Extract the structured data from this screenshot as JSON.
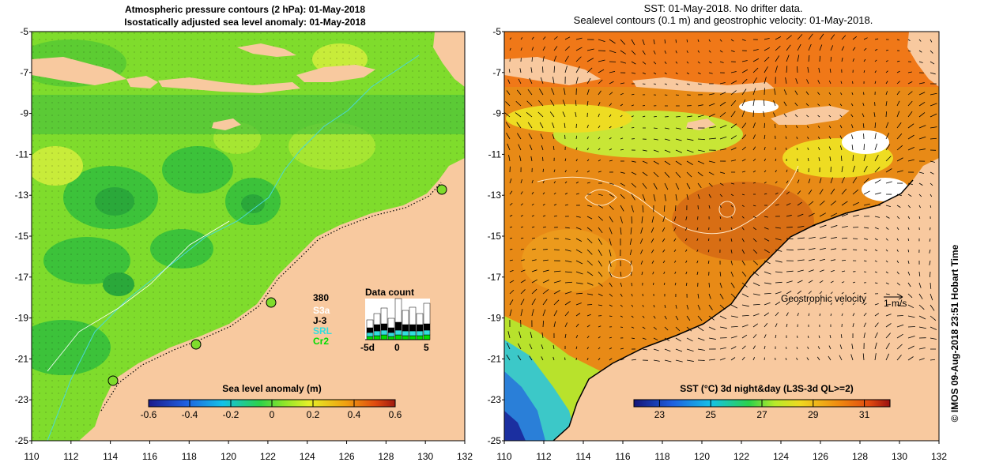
{
  "left_map": {
    "title_line1": "Atmospheric pressure contours (2 hPa): 01-May-2018",
    "title_line2": "Isostatically adjusted sea level anomaly: 01-May-2018",
    "colorbar": {
      "label": "Sea level anomaly (m)",
      "ticks": [
        "-0.6",
        "-0.4",
        "-0.2",
        "0",
        "0.2",
        "0.4",
        "0.6"
      ],
      "range": [
        -0.6,
        0.6
      ]
    },
    "data_count": {
      "title": "Data count",
      "max_label": "380",
      "sources": [
        {
          "name": "S3a",
          "color": "#ffffff"
        },
        {
          "name": "J-3",
          "color": "#000000"
        },
        {
          "name": "SRL",
          "color": "#33dddd"
        },
        {
          "name": "Cr2",
          "color": "#00dd00"
        }
      ],
      "axis_labels": [
        "-5d",
        "0",
        "5"
      ]
    }
  },
  "right_map": {
    "title_line1": "SST: 01-May-2018. No drifter data.",
    "title_line2": "Sealevel contours (0.1 m) and geostrophic velocity: 01-May-2018.",
    "colorbar": {
      "label": "SST (°C) 3d night&day (L3S-3d QL>=2)",
      "ticks": [
        "23",
        "25",
        "27",
        "29",
        "31"
      ],
      "range": [
        22,
        32
      ]
    },
    "velocity_legend": {
      "label": "Geostrophic velocity",
      "scale": "1 m/s"
    }
  },
  "axes": {
    "x_ticks": [
      "110",
      "112",
      "114",
      "116",
      "118",
      "120",
      "122",
      "124",
      "126",
      "128",
      "130",
      "132"
    ],
    "y_ticks": [
      "-5",
      "-7",
      "-9",
      "-11",
      "-13",
      "-15",
      "-17",
      "-19",
      "-21",
      "-23",
      "-25"
    ],
    "lon_range": [
      110,
      132
    ],
    "lat_range": [
      -25,
      -5
    ]
  },
  "credit": "© IMOS 09-Aug-2018 23:51 Hobart Time",
  "colors": {
    "land": "#f8c99f",
    "ocean_green": "#7fdc2c",
    "sst_orange": "#e88a16",
    "sst_blue": "#2a7fd8"
  }
}
